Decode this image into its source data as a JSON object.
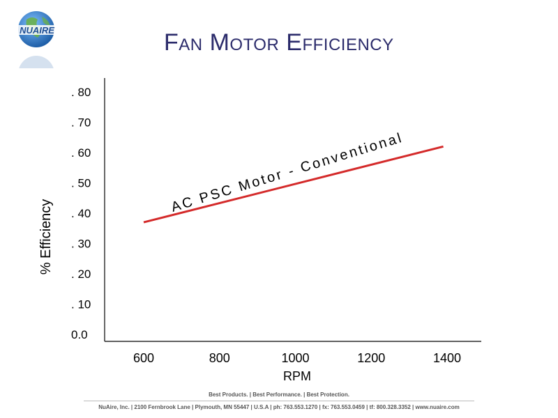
{
  "header": {
    "title": "FAN MOTOR EFFICIENCY",
    "logo_text": "NUAIRE"
  },
  "footer": {
    "tagline": "Best Products. | Best Performance. | Best Protection.",
    "address": "NuAire, Inc. | 2100 Fernbrook Lane | Plymouth, MN 55447 | U.S.A | ph: 763.553.1270 | fx: 763.553.0459 | tf: 800.328.3352 | www.nuaire.com"
  },
  "colors": {
    "title": "#2b2b6b",
    "line": "#d42a2a",
    "axis": "#000000",
    "logo_blue": "#2a6fb5",
    "logo_green": "#6ab04c"
  },
  "chart_data": {
    "type": "line",
    "title": "",
    "xlabel": "RPM",
    "ylabel": "% Efficiency",
    "x_ticks": [
      "600",
      "800",
      "1000",
      "1200",
      "1400"
    ],
    "y_ticks": [
      ". 80",
      ". 70",
      ". 60",
      ". 50",
      ". 40",
      ". 30",
      ". 20",
      ". 10",
      "0.0"
    ],
    "xlim": [
      600,
      1400
    ],
    "ylim": [
      0.0,
      0.8
    ],
    "grid": false,
    "series": [
      {
        "name": "AC PSC Motor - Conventional",
        "x": [
          600,
          1390
        ],
        "y": [
          0.37,
          0.62
        ]
      }
    ],
    "annotations": [
      {
        "text": "AC PSC Motor - Conventional",
        "x": 1000,
        "y": 0.53,
        "angle_deg": -17
      }
    ]
  }
}
